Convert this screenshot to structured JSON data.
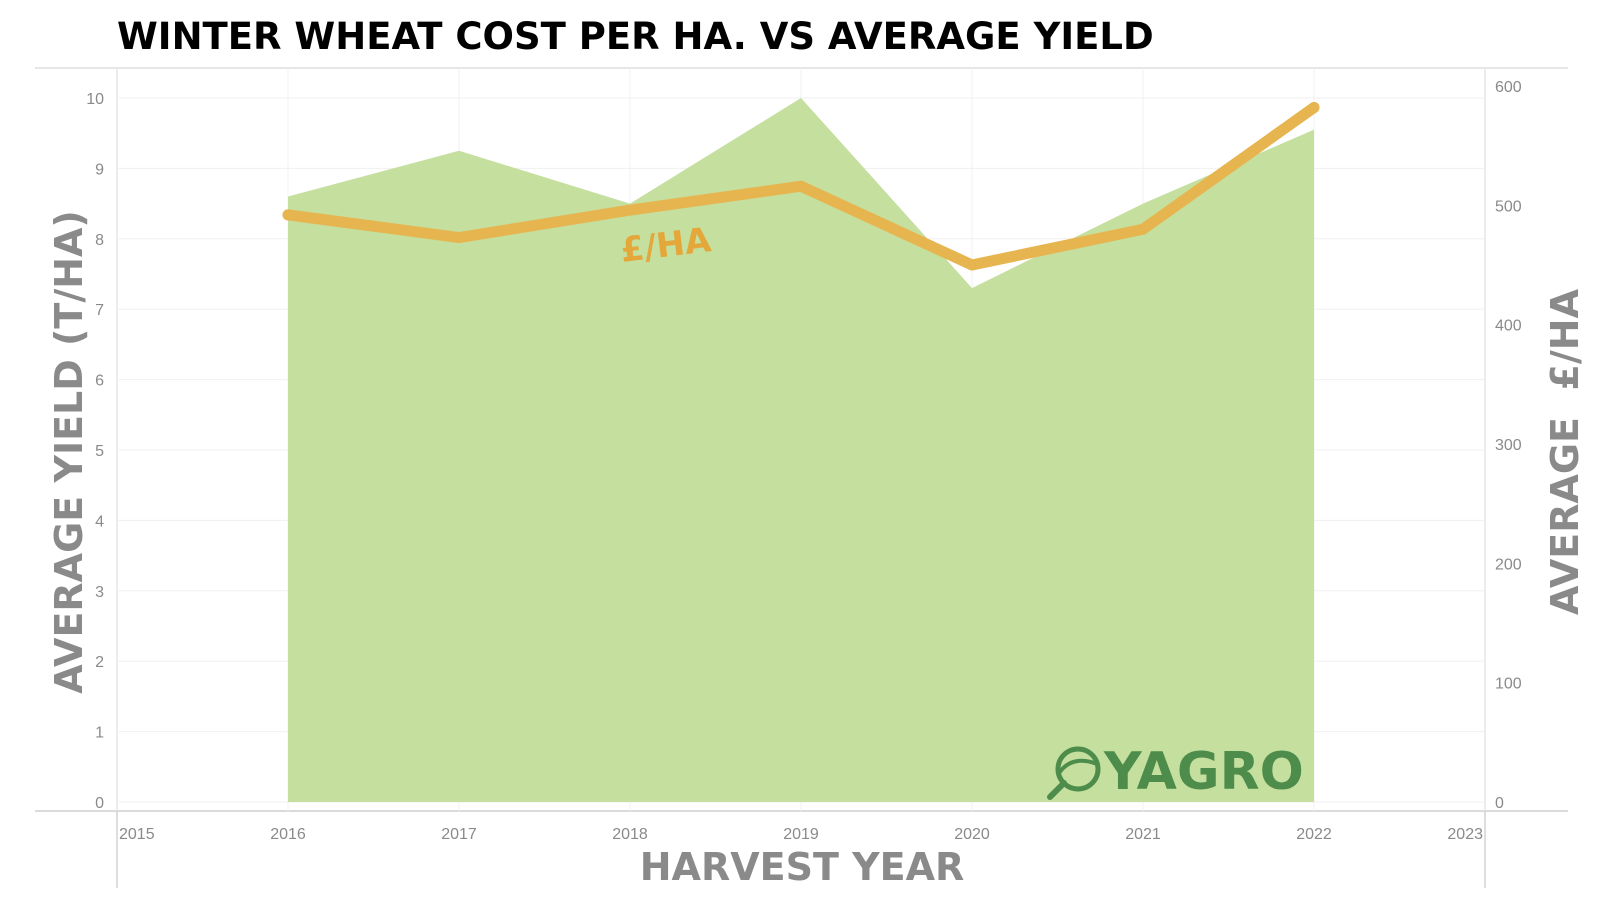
{
  "chart_data": {
    "type": "area+line",
    "title": "WINTER WHEAT COST PER HA. VS AVERAGE YIELD",
    "xlabel": "HARVEST YEAR",
    "ylabel_left": "AVERAGE YIELD (T/HA)",
    "ylabel_right": "AVERAGE  £/HA",
    "x_ticks": [
      "2015",
      "2016",
      "2017",
      "2018",
      "2019",
      "2020",
      "2021",
      "2022",
      "2023"
    ],
    "xlim": [
      2015,
      2023
    ],
    "y_left_ticks": [
      "0",
      "1",
      "2",
      "3",
      "4",
      "5",
      "6",
      "7",
      "8",
      "9",
      "10"
    ],
    "y_left_lim": [
      0,
      10
    ],
    "y_right_ticks": [
      "0",
      "100",
      "200",
      "300",
      "400",
      "500",
      "600"
    ],
    "y_right_lim": [
      0,
      600
    ],
    "grid": true,
    "series": [
      {
        "name": "Average yield",
        "kind": "area",
        "axis": "left",
        "color": "#c5df9f",
        "x": [
          2016,
          2017,
          2018,
          2019,
          2020,
          2021,
          2022
        ],
        "values": [
          8.6,
          9.25,
          8.5,
          10.0,
          7.3,
          8.5,
          9.55
        ]
      },
      {
        "name": "£/HA",
        "kind": "line",
        "axis": "right",
        "color": "#e7b54f",
        "x": [
          2016,
          2017,
          2018,
          2019,
          2020,
          2021,
          2022
        ],
        "values": [
          492,
          473,
          496,
          516,
          450,
          480,
          582
        ]
      }
    ],
    "annotations": [
      {
        "text": "£/HA",
        "x": 2018.25,
        "y_right": 470
      }
    ]
  },
  "logo": {
    "text": "YAGRO",
    "color": "#4d8c4a"
  }
}
